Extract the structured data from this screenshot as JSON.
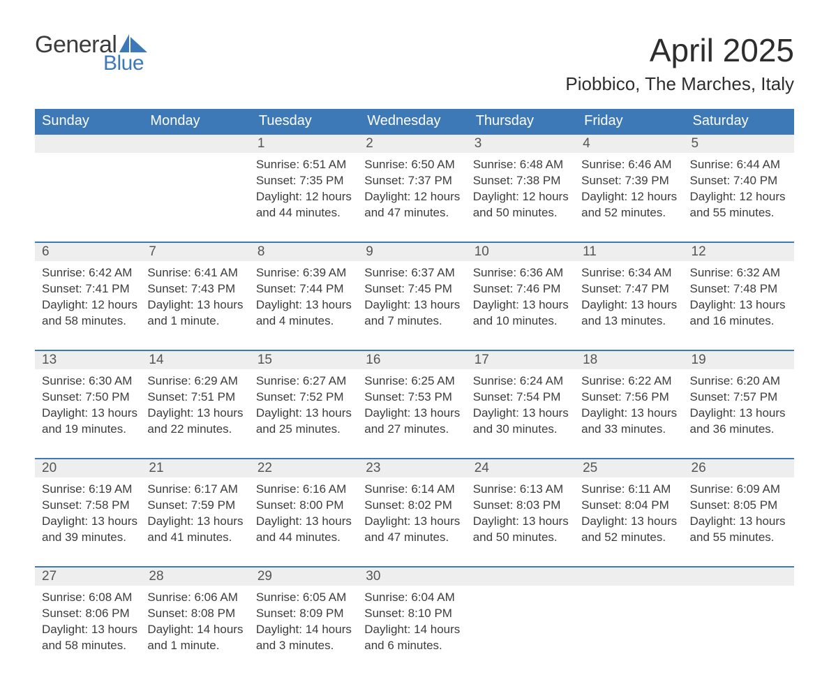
{
  "brand": {
    "top": "General",
    "bottom": "Blue"
  },
  "title": "April 2025",
  "location": "Piobbico, The Marches, Italy",
  "colors": {
    "header_bg": "#3c79b6",
    "header_text": "#ffffff",
    "daynum_bg": "#eeeeee",
    "rule": "#3c79b6",
    "body_text": "#3c3c3c",
    "page_bg": "#ffffff"
  },
  "fonts": {
    "body": "Arial",
    "title_size_pt": 34,
    "header_size_pt": 15,
    "cell_size_pt": 13
  },
  "weekdays": [
    "Sunday",
    "Monday",
    "Tuesday",
    "Wednesday",
    "Thursday",
    "Friday",
    "Saturday"
  ],
  "weeks": [
    [
      null,
      null,
      {
        "n": "1",
        "sunrise": "6:51 AM",
        "sunset": "7:35 PM",
        "daylight": "12 hours and 44 minutes."
      },
      {
        "n": "2",
        "sunrise": "6:50 AM",
        "sunset": "7:37 PM",
        "daylight": "12 hours and 47 minutes."
      },
      {
        "n": "3",
        "sunrise": "6:48 AM",
        "sunset": "7:38 PM",
        "daylight": "12 hours and 50 minutes."
      },
      {
        "n": "4",
        "sunrise": "6:46 AM",
        "sunset": "7:39 PM",
        "daylight": "12 hours and 52 minutes."
      },
      {
        "n": "5",
        "sunrise": "6:44 AM",
        "sunset": "7:40 PM",
        "daylight": "12 hours and 55 minutes."
      }
    ],
    [
      {
        "n": "6",
        "sunrise": "6:42 AM",
        "sunset": "7:41 PM",
        "daylight": "12 hours and 58 minutes."
      },
      {
        "n": "7",
        "sunrise": "6:41 AM",
        "sunset": "7:43 PM",
        "daylight": "13 hours and 1 minute."
      },
      {
        "n": "8",
        "sunrise": "6:39 AM",
        "sunset": "7:44 PM",
        "daylight": "13 hours and 4 minutes."
      },
      {
        "n": "9",
        "sunrise": "6:37 AM",
        "sunset": "7:45 PM",
        "daylight": "13 hours and 7 minutes."
      },
      {
        "n": "10",
        "sunrise": "6:36 AM",
        "sunset": "7:46 PM",
        "daylight": "13 hours and 10 minutes."
      },
      {
        "n": "11",
        "sunrise": "6:34 AM",
        "sunset": "7:47 PM",
        "daylight": "13 hours and 13 minutes."
      },
      {
        "n": "12",
        "sunrise": "6:32 AM",
        "sunset": "7:48 PM",
        "daylight": "13 hours and 16 minutes."
      }
    ],
    [
      {
        "n": "13",
        "sunrise": "6:30 AM",
        "sunset": "7:50 PM",
        "daylight": "13 hours and 19 minutes."
      },
      {
        "n": "14",
        "sunrise": "6:29 AM",
        "sunset": "7:51 PM",
        "daylight": "13 hours and 22 minutes."
      },
      {
        "n": "15",
        "sunrise": "6:27 AM",
        "sunset": "7:52 PM",
        "daylight": "13 hours and 25 minutes."
      },
      {
        "n": "16",
        "sunrise": "6:25 AM",
        "sunset": "7:53 PM",
        "daylight": "13 hours and 27 minutes."
      },
      {
        "n": "17",
        "sunrise": "6:24 AM",
        "sunset": "7:54 PM",
        "daylight": "13 hours and 30 minutes."
      },
      {
        "n": "18",
        "sunrise": "6:22 AM",
        "sunset": "7:56 PM",
        "daylight": "13 hours and 33 minutes."
      },
      {
        "n": "19",
        "sunrise": "6:20 AM",
        "sunset": "7:57 PM",
        "daylight": "13 hours and 36 minutes."
      }
    ],
    [
      {
        "n": "20",
        "sunrise": "6:19 AM",
        "sunset": "7:58 PM",
        "daylight": "13 hours and 39 minutes."
      },
      {
        "n": "21",
        "sunrise": "6:17 AM",
        "sunset": "7:59 PM",
        "daylight": "13 hours and 41 minutes."
      },
      {
        "n": "22",
        "sunrise": "6:16 AM",
        "sunset": "8:00 PM",
        "daylight": "13 hours and 44 minutes."
      },
      {
        "n": "23",
        "sunrise": "6:14 AM",
        "sunset": "8:02 PM",
        "daylight": "13 hours and 47 minutes."
      },
      {
        "n": "24",
        "sunrise": "6:13 AM",
        "sunset": "8:03 PM",
        "daylight": "13 hours and 50 minutes."
      },
      {
        "n": "25",
        "sunrise": "6:11 AM",
        "sunset": "8:04 PM",
        "daylight": "13 hours and 52 minutes."
      },
      {
        "n": "26",
        "sunrise": "6:09 AM",
        "sunset": "8:05 PM",
        "daylight": "13 hours and 55 minutes."
      }
    ],
    [
      {
        "n": "27",
        "sunrise": "6:08 AM",
        "sunset": "8:06 PM",
        "daylight": "13 hours and 58 minutes."
      },
      {
        "n": "28",
        "sunrise": "6:06 AM",
        "sunset": "8:08 PM",
        "daylight": "14 hours and 1 minute."
      },
      {
        "n": "29",
        "sunrise": "6:05 AM",
        "sunset": "8:09 PM",
        "daylight": "14 hours and 3 minutes."
      },
      {
        "n": "30",
        "sunrise": "6:04 AM",
        "sunset": "8:10 PM",
        "daylight": "14 hours and 6 minutes."
      },
      null,
      null,
      null
    ]
  ],
  "labels": {
    "sunrise": "Sunrise:",
    "sunset": "Sunset:",
    "daylight": "Daylight:"
  }
}
